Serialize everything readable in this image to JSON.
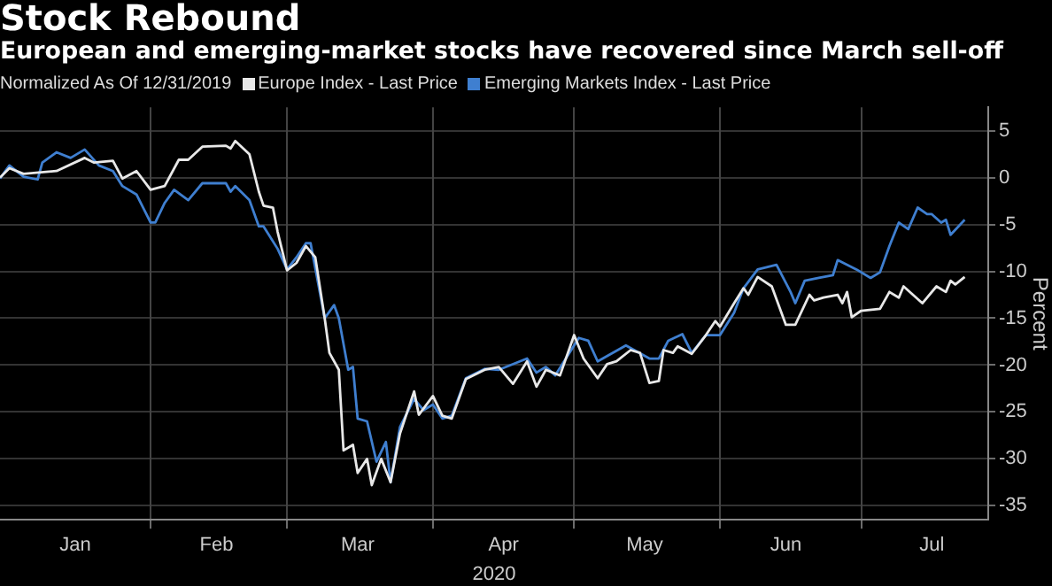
{
  "chart_data": {
    "type": "line",
    "title": "Stock Rebound",
    "subtitle": "European and emerging-market stocks have recovered since March sell-off",
    "legend_title": "Normalized As Of 12/31/2019",
    "xlabel": "2020",
    "ylabel": "Percent",
    "legend": "top left",
    "grid": true,
    "marker": "none",
    "line_style": "solid",
    "xlim": [
      "2019-12-31",
      "2020-07-28"
    ],
    "xticks": [
      {
        "value": "2020-01-16",
        "label": "Jan"
      },
      {
        "value": "2020-02-01",
        "label": null
      },
      {
        "value": "2020-02-15",
        "label": "Feb"
      },
      {
        "value": "2020-03-01",
        "label": null
      },
      {
        "value": "2020-03-16",
        "label": "Mar"
      },
      {
        "value": "2020-04-01",
        "label": null
      },
      {
        "value": "2020-04-16",
        "label": "Apr"
      },
      {
        "value": "2020-05-01",
        "label": null
      },
      {
        "value": "2020-05-16",
        "label": "May"
      },
      {
        "value": "2020-06-01",
        "label": null
      },
      {
        "value": "2020-06-15",
        "label": "Jun"
      },
      {
        "value": "2020-07-01",
        "label": null
      },
      {
        "value": "2020-07-16",
        "label": "Jul"
      }
    ],
    "ylim": [
      -36.5,
      7.5
    ],
    "yticks": [
      5,
      0,
      -5,
      -10,
      -15,
      -20,
      -25,
      -30,
      -35
    ],
    "series": [
      {
        "name": "Europe Index - Last Price",
        "color": "#e8e8e8",
        "x": [
          "2019-12-31",
          "2020-01-02",
          "2020-01-05",
          "2020-01-12",
          "2020-01-18",
          "2020-01-20",
          "2020-01-24",
          "2020-01-26",
          "2020-01-29",
          "2020-02-01",
          "2020-02-04",
          "2020-02-07",
          "2020-02-09",
          "2020-02-12",
          "2020-02-17",
          "2020-02-18",
          "2020-02-19",
          "2020-02-22",
          "2020-02-24",
          "2020-02-25",
          "2020-02-27",
          "2020-02-28",
          "2020-03-01",
          "2020-03-03",
          "2020-03-05",
          "2020-03-07",
          "2020-03-09",
          "2020-03-10",
          "2020-03-12",
          "2020-03-13",
          "2020-03-15",
          "2020-03-16",
          "2020-03-18",
          "2020-03-19",
          "2020-03-21",
          "2020-03-23",
          "2020-03-25",
          "2020-03-28",
          "2020-03-29",
          "2020-04-01",
          "2020-04-03",
          "2020-04-05",
          "2020-04-08",
          "2020-04-12",
          "2020-04-15",
          "2020-04-18",
          "2020-04-21",
          "2020-04-23",
          "2020-04-25",
          "2020-04-28",
          "2020-05-01",
          "2020-05-03",
          "2020-05-06",
          "2020-05-08",
          "2020-05-10",
          "2020-05-13",
          "2020-05-15",
          "2020-05-17",
          "2020-05-19",
          "2020-05-20",
          "2020-05-22",
          "2020-05-23",
          "2020-05-26",
          "2020-05-29",
          "2020-05-31",
          "2020-06-01",
          "2020-06-04",
          "2020-06-06",
          "2020-06-07",
          "2020-06-09",
          "2020-06-12",
          "2020-06-15",
          "2020-06-17",
          "2020-06-20",
          "2020-06-21",
          "2020-06-23",
          "2020-06-26",
          "2020-06-27",
          "2020-06-28",
          "2020-06-29",
          "2020-07-01",
          "2020-07-05",
          "2020-07-07",
          "2020-07-09",
          "2020-07-10",
          "2020-07-14",
          "2020-07-17",
          "2020-07-19",
          "2020-07-20",
          "2020-07-21",
          "2020-07-23"
        ],
        "values": [
          0.0,
          1.0,
          0.4,
          0.7,
          2.1,
          1.6,
          1.8,
          -0.1,
          0.7,
          -1.3,
          -0.9,
          1.9,
          1.9,
          3.3,
          3.4,
          3.1,
          3.9,
          2.5,
          -1.5,
          -3.0,
          -3.2,
          -5.8,
          -9.9,
          -9.1,
          -7.3,
          -8.5,
          -15.0,
          -18.7,
          -20.5,
          -29.1,
          -28.5,
          -31.5,
          -30.0,
          -32.8,
          -30.0,
          -32.5,
          -27.3,
          -22.8,
          -25.3,
          -23.3,
          -25.4,
          -25.7,
          -21.5,
          -20.5,
          -20.2,
          -22.0,
          -19.6,
          -22.3,
          -20.5,
          -21.1,
          -16.8,
          -19.3,
          -21.4,
          -19.9,
          -19.6,
          -18.4,
          -18.7,
          -21.9,
          -21.7,
          -18.4,
          -18.7,
          -18.0,
          -18.8,
          -16.8,
          -15.3,
          -15.9,
          -13.4,
          -11.8,
          -12.5,
          -10.6,
          -11.6,
          -15.7,
          -15.7,
          -12.5,
          -13.1,
          -12.8,
          -12.5,
          -13.4,
          -12.2,
          -14.9,
          -14.2,
          -14.0,
          -12.2,
          -12.8,
          -11.6,
          -13.4,
          -11.6,
          -12.2,
          -11.0,
          -11.4,
          -10.6
        ]
      },
      {
        "name": "Emerging Markets Index - Last Price",
        "color": "#3f7fd0",
        "x": [
          "2019-12-31",
          "2020-01-02",
          "2020-01-05",
          "2020-01-08",
          "2020-01-09",
          "2020-01-12",
          "2020-01-15",
          "2020-01-18",
          "2020-01-21",
          "2020-01-24",
          "2020-01-26",
          "2020-01-29",
          "2020-02-01",
          "2020-02-02",
          "2020-02-04",
          "2020-02-06",
          "2020-02-09",
          "2020-02-12",
          "2020-02-17",
          "2020-02-18",
          "2020-02-19",
          "2020-02-22",
          "2020-02-24",
          "2020-02-25",
          "2020-02-28",
          "2020-03-01",
          "2020-03-03",
          "2020-03-05",
          "2020-03-06",
          "2020-03-09",
          "2020-03-11",
          "2020-03-12",
          "2020-03-14",
          "2020-03-15",
          "2020-03-16",
          "2020-03-18",
          "2020-03-20",
          "2020-03-22",
          "2020-03-23",
          "2020-03-25",
          "2020-03-28",
          "2020-03-30",
          "2020-04-01",
          "2020-04-03",
          "2020-04-05",
          "2020-04-08",
          "2020-04-12",
          "2020-04-15",
          "2020-04-21",
          "2020-04-23",
          "2020-04-25",
          "2020-04-27",
          "2020-05-02",
          "2020-05-04",
          "2020-05-06",
          "2020-05-12",
          "2020-05-17",
          "2020-05-19",
          "2020-05-21",
          "2020-05-24",
          "2020-05-26",
          "2020-05-29",
          "2020-06-01",
          "2020-06-04",
          "2020-06-06",
          "2020-06-09",
          "2020-06-13",
          "2020-06-16",
          "2020-06-17",
          "2020-06-19",
          "2020-06-22",
          "2020-06-25",
          "2020-06-26",
          "2020-06-30",
          "2020-07-03",
          "2020-07-05",
          "2020-07-07",
          "2020-07-09",
          "2020-07-11",
          "2020-07-13",
          "2020-07-15",
          "2020-07-16",
          "2020-07-18",
          "2020-07-19",
          "2020-07-20",
          "2020-07-23"
        ],
        "values": [
          -0.1,
          1.3,
          0.1,
          -0.2,
          1.6,
          2.7,
          2.1,
          3.0,
          1.3,
          0.7,
          -0.9,
          -1.8,
          -4.8,
          -4.8,
          -2.7,
          -1.3,
          -2.4,
          -0.6,
          -0.6,
          -1.5,
          -0.9,
          -2.4,
          -5.2,
          -5.2,
          -7.6,
          -9.8,
          -8.5,
          -7.0,
          -7.0,
          -15.0,
          -13.6,
          -15.0,
          -20.5,
          -20.2,
          -25.7,
          -26.0,
          -30.3,
          -28.2,
          -32.5,
          -26.6,
          -23.6,
          -24.8,
          -24.2,
          -25.7,
          -25.4,
          -21.4,
          -20.4,
          -20.5,
          -19.3,
          -20.8,
          -20.2,
          -21.1,
          -17.1,
          -17.4,
          -19.6,
          -17.9,
          -19.3,
          -19.3,
          -17.4,
          -16.7,
          -18.7,
          -16.8,
          -16.8,
          -14.4,
          -11.8,
          -9.8,
          -9.3,
          -12.2,
          -13.4,
          -11.0,
          -10.7,
          -10.4,
          -8.8,
          -9.8,
          -10.7,
          -10.1,
          -7.3,
          -4.8,
          -5.5,
          -3.2,
          -3.9,
          -3.9,
          -4.8,
          -4.5,
          -6.1,
          -4.5
        ]
      }
    ]
  }
}
